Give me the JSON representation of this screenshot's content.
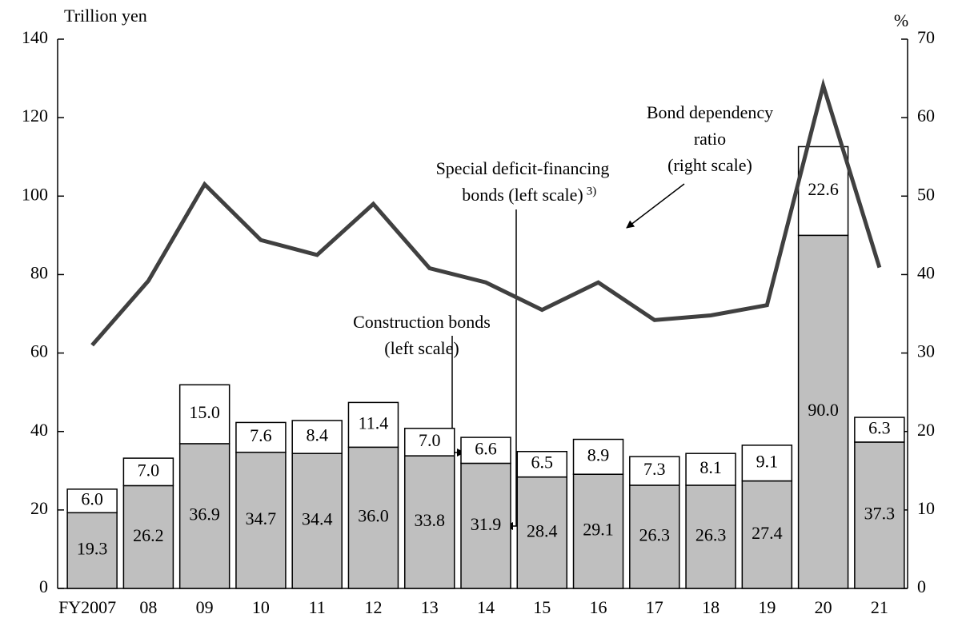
{
  "chart_data": {
    "type": "bar-line",
    "categories": [
      "FY2007",
      "08",
      "09",
      "10",
      "11",
      "12",
      "13",
      "14",
      "15",
      "16",
      "17",
      "18",
      "19",
      "20",
      "21"
    ],
    "series": [
      {
        "color": "#bfbfbf",
        "values": [
          19.3,
          26.2,
          36.9,
          34.7,
          34.4,
          36.0,
          33.8,
          31.9,
          28.4,
          29.1,
          26.3,
          26.3,
          27.4,
          90.0,
          37.3
        ],
        "value_labels": [
          "19.3",
          "26.2",
          "36.9",
          "34.7",
          "34.4",
          "36.0",
          "33.8",
          "31.9",
          "28.4",
          "29.1",
          "26.3",
          "26.3",
          "27.4",
          "90.0",
          "37.3"
        ]
      },
      {
        "color": "#ffffff",
        "values": [
          6.0,
          7.0,
          15.0,
          7.6,
          8.4,
          11.4,
          7.0,
          6.6,
          6.5,
          8.9,
          7.3,
          8.1,
          9.1,
          22.6,
          6.3
        ],
        "value_labels": [
          "6.0",
          "7.0",
          "15.0",
          "7.6",
          "8.4",
          "11.4",
          "7.0",
          "6.6",
          "6.5",
          "8.9",
          "7.3",
          "8.1",
          "9.1",
          "22.6",
          "6.3"
        ]
      },
      {
        "color": "#404040",
        "axis": "y2",
        "values": [
          31.0,
          39.2,
          51.5,
          44.4,
          42.5,
          49.0,
          40.8,
          39.0,
          35.5,
          39.0,
          34.2,
          34.8,
          36.1,
          64.1,
          40.9
        ]
      }
    ],
    "y_label": "Trillion yen",
    "y2_label": "%",
    "ylim": [
      0,
      140
    ],
    "yticks": [
      0,
      20,
      40,
      60,
      80,
      100,
      120,
      140
    ],
    "y2lim": [
      0,
      70
    ],
    "y2ticks": [
      0,
      10,
      20,
      30,
      40,
      50,
      60,
      70
    ],
    "annotations": [
      {
        "lines": [
          "Bond dependency",
          "ratio",
          "(right scale)"
        ]
      },
      {
        "lines": [
          "Special deficit-financing",
          "bonds (left scale)"
        ],
        "note": "3)"
      },
      {
        "lines": [
          "Construction bonds",
          "(left scale)"
        ]
      }
    ]
  }
}
